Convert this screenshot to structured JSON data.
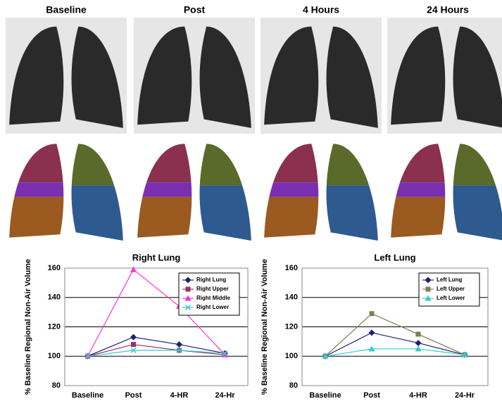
{
  "headers": [
    "Baseline",
    "Post",
    "4 Hours",
    "24 Hours"
  ],
  "chart_data": [
    {
      "type": "line",
      "title": "Right Lung",
      "y_label": "% Baseline Regional Non-Air Volume",
      "categories": [
        "Baseline",
        "Post",
        "4-HR",
        "24-Hr"
      ],
      "ylim": [
        80,
        160
      ],
      "yticks": [
        80,
        100,
        120,
        140,
        160
      ],
      "grid": true,
      "legend": "upper right",
      "series": [
        {
          "name": "Right Lung",
          "color": "#1f1f7a",
          "marker": "diamond",
          "values": [
            100,
            113,
            108,
            102
          ]
        },
        {
          "name": "Right Upper",
          "color": "#993366",
          "marker": "square",
          "values": [
            100,
            108,
            104,
            101
          ]
        },
        {
          "name": "Right Middle",
          "color": "#ff33cc",
          "marker": "triangle",
          "values": [
            100,
            159,
            134,
            101
          ]
        },
        {
          "name": "Right Lower",
          "color": "#33cccc",
          "marker": "x",
          "values": [
            100,
            104,
            104,
            102
          ]
        }
      ]
    },
    {
      "type": "line",
      "title": "Left Lung",
      "y_label": "% Baseline Regional Non-Air Volume",
      "categories": [
        "Baseline",
        "Post",
        "4-HR",
        "24-Hr"
      ],
      "ylim": [
        80,
        160
      ],
      "yticks": [
        80,
        100,
        120,
        140,
        160
      ],
      "grid": true,
      "legend": "upper right",
      "series": [
        {
          "name": "Left Lung",
          "color": "#1f1f7a",
          "marker": "diamond",
          "values": [
            100,
            116,
            109,
            101
          ]
        },
        {
          "name": "Left Upper",
          "color": "#7f7f4f",
          "marker": "square",
          "values": [
            100,
            129,
            115,
            101
          ]
        },
        {
          "name": "Left Lower",
          "color": "#33cccc",
          "marker": "triangle",
          "values": [
            100,
            105,
            105,
            101
          ]
        }
      ]
    }
  ]
}
